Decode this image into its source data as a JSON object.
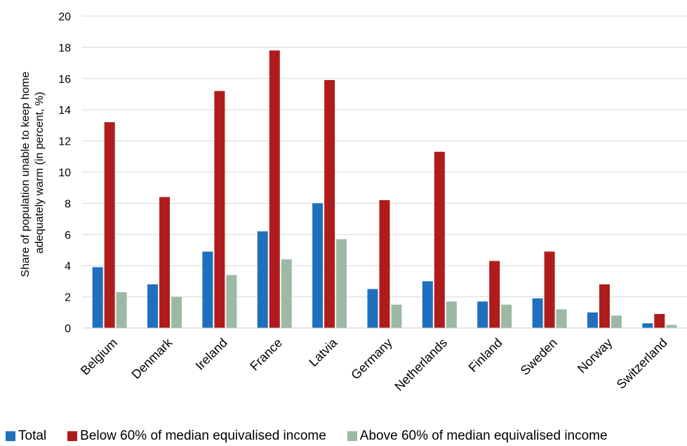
{
  "chart_data": {
    "type": "bar",
    "title": "",
    "xlabel": "",
    "ylabel": "Share of population unable to keep home adequately warm (in percent, %)",
    "ylabel_lines": [
      "Share of population unable to keep home",
      "adequately warm (in percent, %)"
    ],
    "ylim": [
      0,
      20
    ],
    "yticks": [
      "0",
      "2",
      "4",
      "6",
      "8",
      "10",
      "12",
      "14",
      "16",
      "18",
      "20"
    ],
    "grid": true,
    "legend_position": "bottom",
    "categories": [
      "Belgium",
      "Denmark",
      "Ireland",
      "France",
      "Latvia",
      "Germany",
      "Netherlands",
      "Finland",
      "Sweden",
      "Norway",
      "Switzerland"
    ],
    "series": [
      {
        "name": "Total",
        "color": "#1f6fbf",
        "values": [
          3.9,
          2.8,
          4.9,
          6.2,
          8.0,
          2.5,
          3.0,
          1.7,
          1.9,
          1.0,
          0.3
        ]
      },
      {
        "name": "Below 60% of median equivalised income",
        "color": "#b01c1c",
        "values": [
          13.2,
          8.4,
          15.2,
          17.8,
          15.9,
          8.2,
          11.3,
          4.3,
          4.9,
          2.8,
          0.9
        ]
      },
      {
        "name": "Above 60% of median equivalised income",
        "color": "#9db9a6",
        "values": [
          2.3,
          2.0,
          3.4,
          4.4,
          5.7,
          1.5,
          1.7,
          1.5,
          1.2,
          0.8,
          0.2
        ]
      }
    ]
  }
}
